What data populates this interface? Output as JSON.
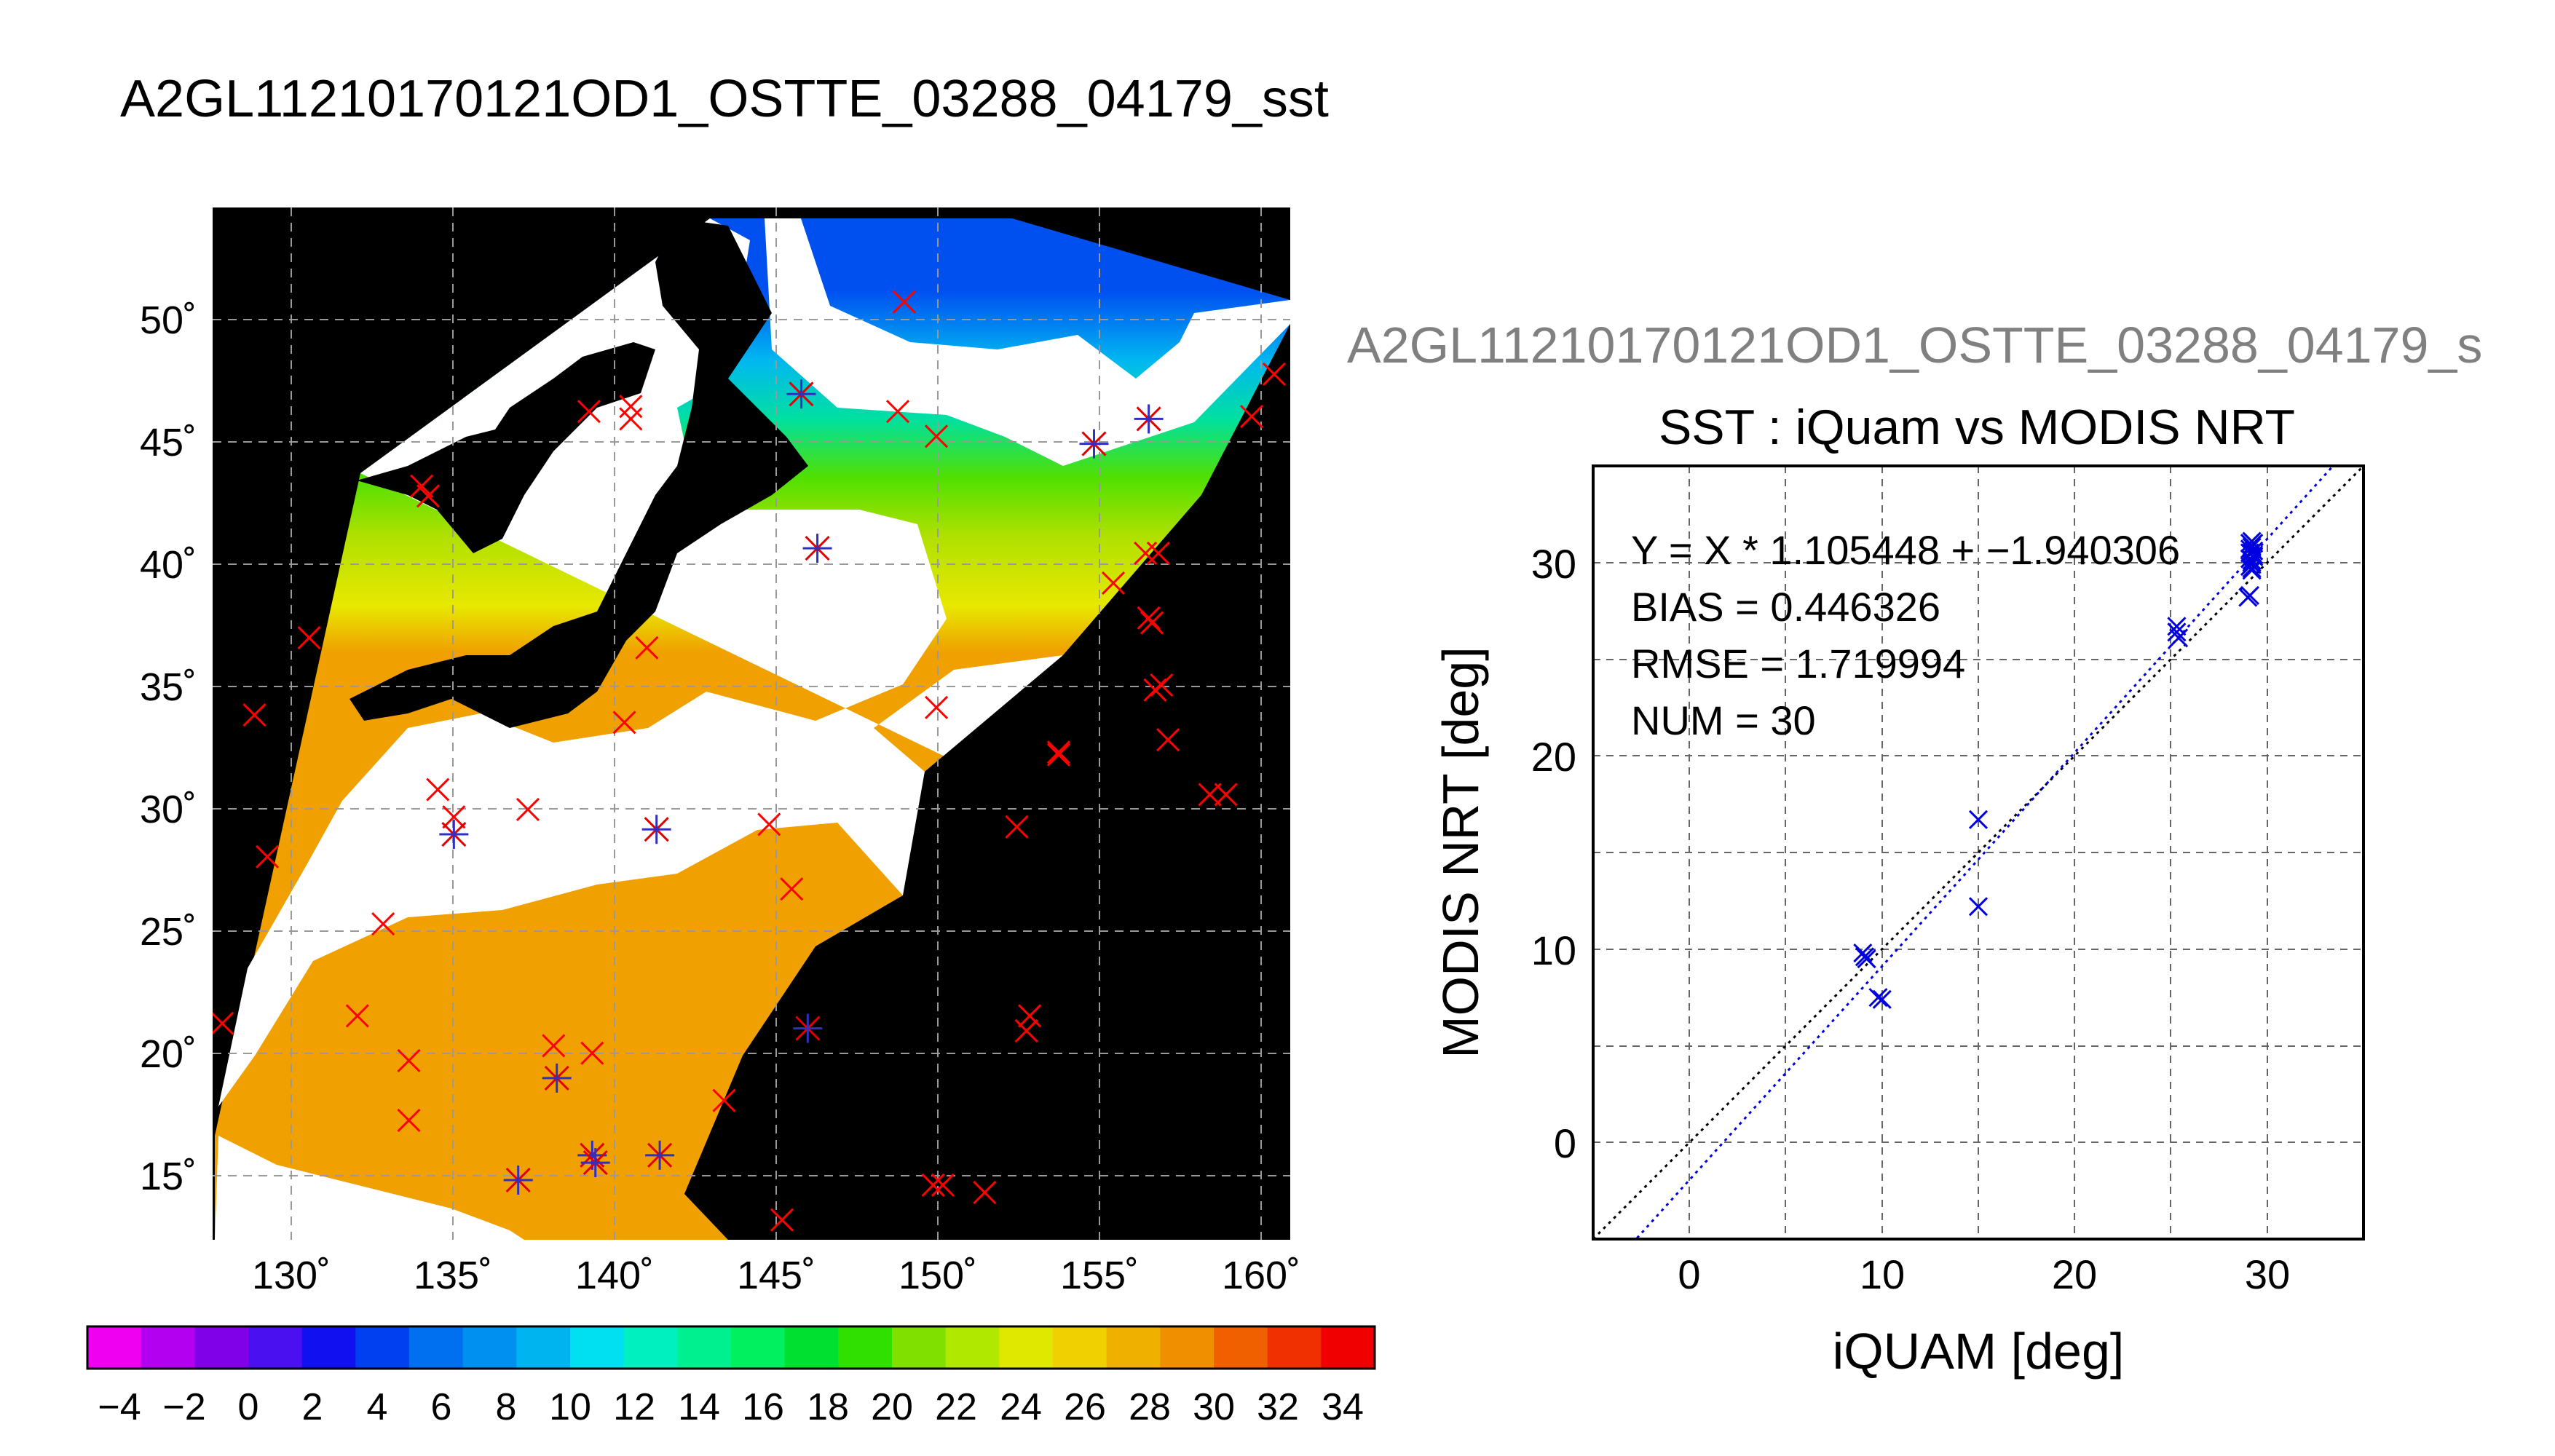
{
  "map_panel": {
    "title": "A2GL11210170121OD1_OSTTE_03288_04179_sst",
    "lat_ticks": [
      "15˚",
      "20˚",
      "25˚",
      "30˚",
      "35˚",
      "40˚",
      "45˚",
      "50˚"
    ],
    "lon_ticks": [
      "130˚",
      "135˚",
      "140˚",
      "145˚",
      "150˚",
      "155˚",
      "160˚"
    ],
    "colorbar_ticks": [
      "−4",
      "−2",
      "0",
      "2",
      "4",
      "6",
      "8",
      "10",
      "12",
      "14",
      "16",
      "18",
      "20",
      "22",
      "24",
      "26",
      "28",
      "30",
      "32",
      "34"
    ],
    "colorbar_colors": [
      "#f000f0",
      "#b400f0",
      "#8000e8",
      "#4a10f0",
      "#1010f0",
      "#0040f0",
      "#0070f0",
      "#0090f0",
      "#00b4f0",
      "#00e0f0",
      "#00f0c0",
      "#00f090",
      "#00f060",
      "#00e030",
      "#30e000",
      "#80e000",
      "#b0e800",
      "#e0e800",
      "#f0d000",
      "#f0b000",
      "#f09000",
      "#f06000",
      "#f03000",
      "#f00000"
    ],
    "colors": {
      "land": "#000000",
      "cloud": "#ffffff",
      "ocean_background": "#000000",
      "grid": "#999999"
    }
  },
  "scatter_panel": {
    "heading": "A2GL11210170121OD1_OSTTE_03288_04179_s",
    "title": "SST : iQuam vs MODIS NRT",
    "stats": [
      "Y = X * 1.105448 + −1.940306",
      "BIAS = 0.446326",
      "RMSE = 1.719994",
      "NUM = 30"
    ],
    "colors": {
      "points": "#0000e0",
      "fit_line": "#0000e0",
      "identity_line": "#000000",
      "heading": "#808080"
    }
  },
  "chart_data": [
    {
      "type": "scatter",
      "title": "A2GL11210170121OD1_OSTTE_03288_04179_sst",
      "xlabel": "",
      "ylabel": "",
      "xlim": [
        127.5,
        161
      ],
      "ylim": [
        12.5,
        54
      ],
      "x_ticks": [
        130,
        135,
        140,
        145,
        150,
        155,
        160
      ],
      "y_ticks": [
        15,
        20,
        25,
        30,
        35,
        40,
        45,
        50
      ],
      "grid": true,
      "colorbar": {
        "min": -5,
        "max": 35,
        "ticks": [
          -4,
          -2,
          0,
          2,
          4,
          6,
          8,
          10,
          12,
          14,
          16,
          18,
          20,
          22,
          24,
          26,
          28,
          30,
          32,
          34
        ]
      },
      "series": [
        {
          "marker": "x",
          "color": "#ff0000",
          "points": [
            [
              149,
              50.2
            ],
            [
              139.2,
              45.8
            ],
            [
              140.5,
              46.0
            ],
            [
              140.5,
              45.5
            ],
            [
              148.8,
              45.8
            ],
            [
              150,
              44.8
            ],
            [
              159.8,
              45.6
            ],
            [
              160.5,
              47.3
            ],
            [
              134,
              42.8
            ],
            [
              134.2,
              42.4
            ],
            [
              156.5,
              40.1
            ],
            [
              156.9,
              40.1
            ],
            [
              155.5,
              38.9
            ],
            [
              156.6,
              37.5
            ],
            [
              156.7,
              37.3
            ],
            [
              130.5,
              36.7
            ],
            [
              141,
              36.3
            ],
            [
              157,
              34.8
            ],
            [
              156.8,
              34.6
            ],
            [
              128.8,
              33.6
            ],
            [
              140.3,
              33.3
            ],
            [
              150,
              33.9
            ],
            [
              157.2,
              32.6
            ],
            [
              153.8,
              32.1
            ],
            [
              153.8,
              32.0
            ],
            [
              134.5,
              30.6
            ],
            [
              135,
              29.5
            ],
            [
              137.3,
              29.8
            ],
            [
              144.8,
              29.2
            ],
            [
              152.5,
              29.1
            ],
            [
              158.5,
              30.4
            ],
            [
              159,
              30.4
            ],
            [
              129.2,
              27.9
            ],
            [
              145.5,
              26.6
            ],
            [
              132.8,
              25.2
            ],
            [
              132,
              21.5
            ],
            [
              152.9,
              21.5
            ],
            [
              152.8,
              20.9
            ],
            [
              127.8,
              21.2
            ],
            [
              138.1,
              20.3
            ],
            [
              139.3,
              20.0
            ],
            [
              133.6,
              19.7
            ],
            [
              143.4,
              18.1
            ],
            [
              133.6,
              17.3
            ],
            [
              149.9,
              14.7
            ],
            [
              150.2,
              14.7
            ],
            [
              151.5,
              14.4
            ],
            [
              145.2,
              13.3
            ]
          ]
        },
        {
          "marker": "x+",
          "color": "#3030c0",
          "points": [
            [
              145.8,
              46.5
            ],
            [
              154.9,
              44.5
            ],
            [
              156.6,
              45.5
            ],
            [
              146.3,
              40.3
            ],
            [
              135,
              28.8
            ],
            [
              141.3,
              29.0
            ],
            [
              146,
              21.0
            ],
            [
              138.2,
              19.0
            ],
            [
              139.3,
              15.9
            ],
            [
              139.4,
              15.6
            ],
            [
              141.4,
              15.9
            ],
            [
              137,
              14.9
            ]
          ]
        }
      ]
    },
    {
      "type": "scatter",
      "title": "SST : iQuam vs MODIS NRT",
      "xlabel": "iQUAM [deg]",
      "ylabel": "MODIS NRT [deg]",
      "xlim": [
        -5,
        35
      ],
      "ylim": [
        -5,
        35
      ],
      "x_ticks": [
        0,
        10,
        20,
        30
      ],
      "y_ticks": [
        0,
        10,
        20,
        30
      ],
      "grid": true,
      "fit": {
        "slope": 1.105448,
        "intercept": -1.940306
      },
      "series": [
        {
          "marker": "x",
          "points": [
            [
              9.0,
              9.8
            ],
            [
              9.2,
              9.5
            ],
            [
              9.1,
              9.6
            ],
            [
              9.8,
              7.5
            ],
            [
              10.0,
              7.4
            ],
            [
              15.0,
              16.7
            ],
            [
              15.0,
              12.2
            ],
            [
              25.3,
              26.7
            ],
            [
              25.4,
              26.1
            ],
            [
              25.3,
              26.4
            ],
            [
              29.1,
              28.3
            ],
            [
              29.2,
              30.9
            ],
            [
              29.2,
              30.5
            ],
            [
              29.1,
              30.2
            ],
            [
              29.2,
              29.9
            ],
            [
              29.3,
              31.0
            ],
            [
              29.1,
              30.7
            ],
            [
              29.2,
              30.0
            ],
            [
              29.3,
              30.4
            ],
            [
              29.2,
              29.7
            ],
            [
              29.1,
              31.0
            ],
            [
              29.2,
              30.8
            ],
            [
              29.3,
              30.6
            ],
            [
              29.2,
              30.1
            ],
            [
              29.1,
              29.8
            ],
            [
              29.3,
              30.3
            ],
            [
              29.2,
              31.1
            ],
            [
              29.1,
              30.5
            ],
            [
              29.2,
              29.6
            ],
            [
              29.0,
              28.2
            ]
          ]
        }
      ]
    }
  ]
}
